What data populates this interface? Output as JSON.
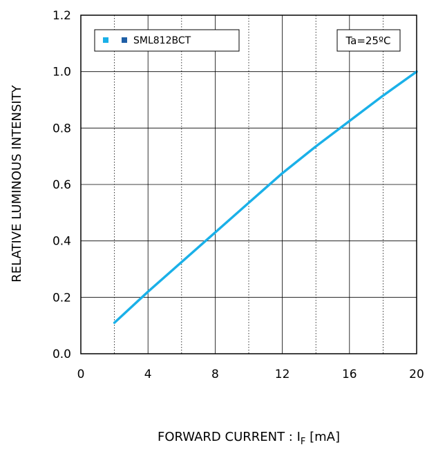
{
  "chart_data": {
    "type": "line",
    "xlabel_main": "FORWARD CURRENT : I",
    "xlabel_sub": "F",
    "xlabel_unit": " [mA]",
    "ylabel": "RELATIVE LUMINOUS INTENSITY",
    "xlim": [
      0,
      20
    ],
    "ylim": [
      0.0,
      1.2
    ],
    "x_ticks": [
      "0",
      "4",
      "8",
      "12",
      "16",
      "20"
    ],
    "y_ticks": [
      "0.0",
      "0.2",
      "0.4",
      "0.6",
      "0.8",
      "1.0",
      "1.2"
    ],
    "grid": true,
    "legend_position": "top-left",
    "condition_label": "Ta=25ºC",
    "series": [
      {
        "name": "SML812BCT",
        "color": "#1ab0e8",
        "marker_colors": [
          "#1ab0e8",
          "#1f5fa6"
        ],
        "x": [
          2,
          4,
          6,
          8,
          10,
          12,
          14,
          16,
          18,
          20
        ],
        "y": [
          0.11,
          0.22,
          0.325,
          0.43,
          0.535,
          0.64,
          0.735,
          0.825,
          0.915,
          1.0
        ]
      }
    ]
  }
}
